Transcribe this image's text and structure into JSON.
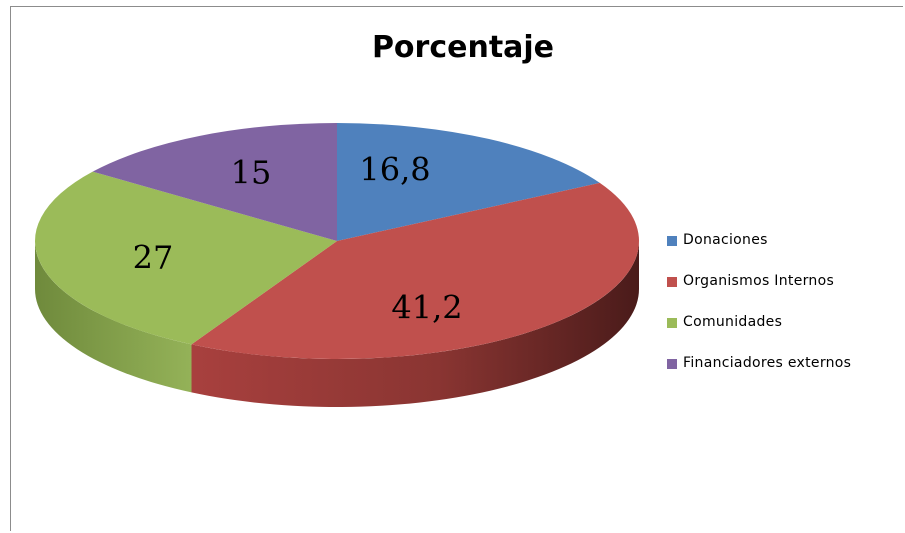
{
  "chart_data": {
    "type": "pie",
    "title": "Porcentaje",
    "categories": [
      "Donaciones",
      "Organismos Internos",
      "Comunidades",
      "Financiadores externos"
    ],
    "values": [
      16.8,
      41.2,
      27,
      15
    ],
    "value_labels": [
      "16,8",
      "41,2",
      "27",
      "15"
    ],
    "colors": [
      "#4f81bd",
      "#c0504d",
      "#9bbb59",
      "#8064a2"
    ],
    "side_colors": [
      "#385d8a",
      "#8c3836",
      "#71893f",
      "#5c4776"
    ],
    "style": "3d",
    "legend_position": "right"
  }
}
